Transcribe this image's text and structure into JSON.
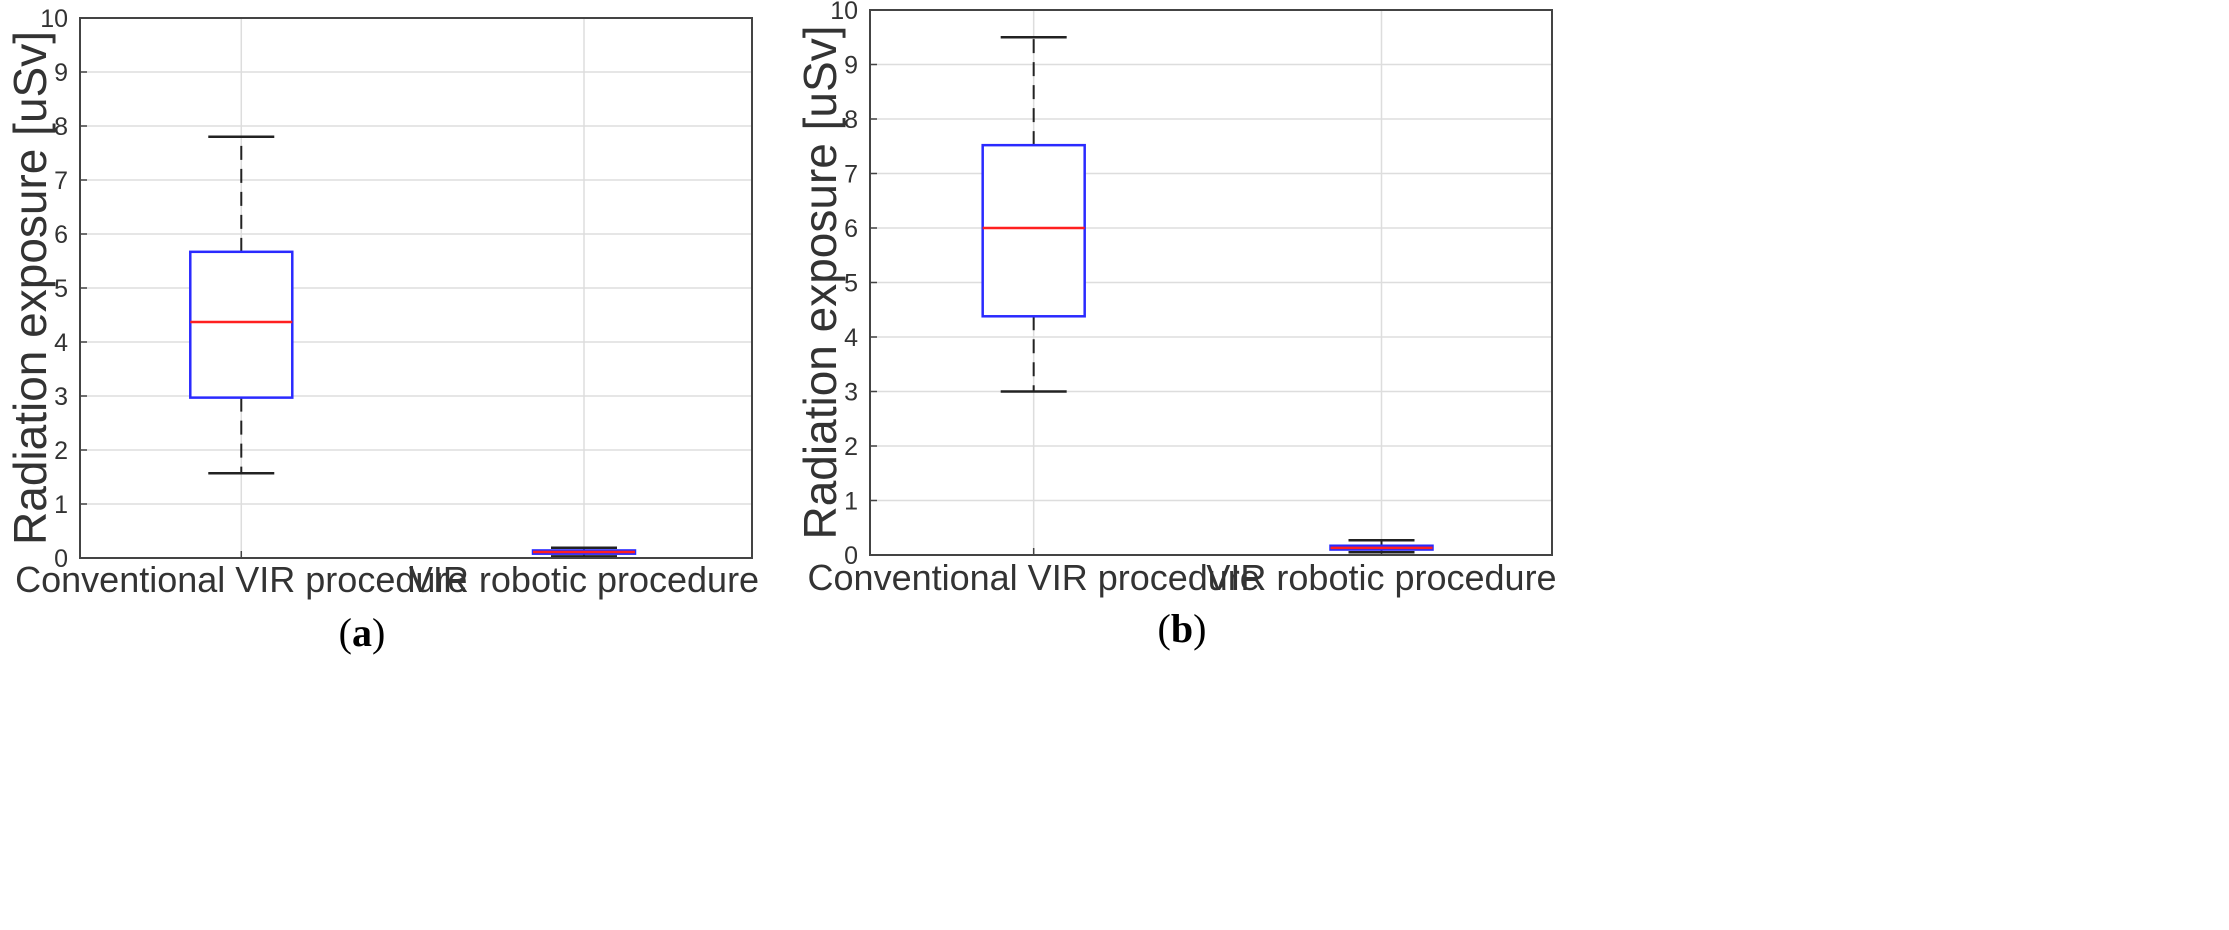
{
  "colors": {
    "box": "#2a2aff",
    "median": "#ff2020",
    "whisker": "#222222",
    "grid": "#dddddd",
    "frame": "#444444"
  },
  "chart_data": [
    {
      "type": "boxplot",
      "panel": "a",
      "caption": {
        "open": "(",
        "letter": "a",
        "close": ")"
      },
      "title": "",
      "xlabel": "",
      "ylabel": "Radiation exposure [uSv]",
      "ylim": [
        0,
        10
      ],
      "yticks": [
        "0",
        "1",
        "2",
        "3",
        "4",
        "5",
        "6",
        "7",
        "8",
        "9",
        "10"
      ],
      "grid": true,
      "categories": [
        "Conventional VIR procedure",
        "VIR robotic procedure"
      ],
      "boxes": [
        {
          "category": "Conventional VIR procedure",
          "whisker_low": 1.57,
          "q1": 2.97,
          "median": 4.37,
          "q3": 5.67,
          "whisker_high": 7.8
        },
        {
          "category": "VIR robotic procedure",
          "whisker_low": 0.03,
          "q1": 0.08,
          "median": 0.11,
          "q3": 0.14,
          "whisker_high": 0.19
        }
      ]
    },
    {
      "type": "boxplot",
      "panel": "b",
      "caption": {
        "open": "(",
        "letter": "b",
        "close": ")"
      },
      "title": "",
      "xlabel": "",
      "ylabel": "Radiation exposure [uSv]",
      "ylim": [
        0,
        10
      ],
      "yticks": [
        "0",
        "1",
        "2",
        "3",
        "4",
        "5",
        "6",
        "7",
        "8",
        "9",
        "10"
      ],
      "grid": true,
      "categories": [
        "Conventional VIR procedure",
        "VIR robotic procedure"
      ],
      "boxes": [
        {
          "category": "Conventional VIR procedure",
          "whisker_low": 3.0,
          "q1": 4.38,
          "median": 6.0,
          "q3": 7.52,
          "whisker_high": 9.5
        },
        {
          "category": "VIR robotic procedure",
          "whisker_low": 0.05,
          "q1": 0.1,
          "median": 0.13,
          "q3": 0.17,
          "whisker_high": 0.27
        }
      ]
    }
  ]
}
